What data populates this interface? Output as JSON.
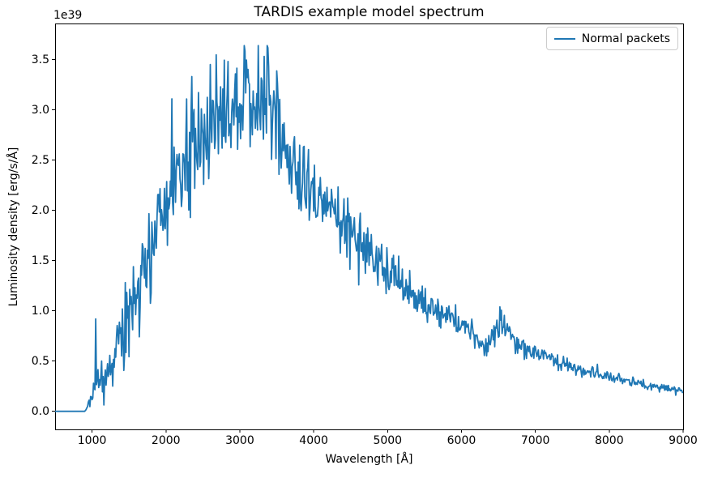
{
  "figure": {
    "title": "TARDIS example model spectrum",
    "background": "#ffffff",
    "text_color": "#000000"
  },
  "axes": {
    "xlabel": "Wavelength [Å]",
    "ylabel": "Luminosity density [erg/s/Å]",
    "offset_label": "1e39",
    "spine_color": "#000000",
    "x_tick_values": [
      1000,
      2000,
      3000,
      4000,
      5000,
      6000,
      7000,
      8000,
      9000
    ],
    "x_tick_labels": [
      "1000",
      "2000",
      "3000",
      "4000",
      "5000",
      "6000",
      "7000",
      "8000",
      "9000"
    ],
    "y_tick_values": [
      0.0,
      0.5,
      1.0,
      1.5,
      2.0,
      2.5,
      3.0,
      3.5
    ],
    "y_tick_labels": [
      "0.0",
      "0.5",
      "1.0",
      "1.5",
      "2.0",
      "2.5",
      "3.0",
      "3.5"
    ]
  },
  "legend": {
    "location": "upper right",
    "entries": [
      {
        "label": "Normal packets",
        "color": "#1f77b4"
      }
    ]
  },
  "chart_data": {
    "type": "line",
    "title": "TARDIS example model spectrum",
    "xlabel": "Wavelength [Å]",
    "ylabel": "Luminosity density [erg/s/Å]",
    "y_unit_multiplier": "1e39 erg/s/Å",
    "xlim": [
      500,
      9000
    ],
    "ylim": [
      -0.18,
      3.86
    ],
    "grid": false,
    "legend_position": "upper right",
    "series": [
      {
        "name": "Normal packets",
        "color": "#1f77b4",
        "description": "Noisy Monte-Carlo supernova spectrum: zero below ~900 Å, steep noisy rise 1000-2500 Å, broad peak ~3.1e39 at 2800-3400 Å (max spike 3.64e39 near 3060 Å), noisy decline past 3600 Å, absorption dip near 6300 Å with emission bump ~0.9e39 near 6550 Å, smooth tail to ~0.21e39 at 9000 Å",
        "envelope": [
          [
            500,
            0
          ],
          [
            900,
            0
          ],
          [
            940,
            0.04
          ],
          [
            1000,
            0.17
          ],
          [
            1100,
            0.3
          ],
          [
            1200,
            0.38
          ],
          [
            1300,
            0.52
          ],
          [
            1400,
            0.72
          ],
          [
            1500,
            1.0
          ],
          [
            1600,
            1.22
          ],
          [
            1700,
            1.45
          ],
          [
            1800,
            1.65
          ],
          [
            1900,
            1.85
          ],
          [
            2000,
            2.0
          ],
          [
            2100,
            2.2
          ],
          [
            2200,
            2.4
          ],
          [
            2300,
            2.55
          ],
          [
            2400,
            2.68
          ],
          [
            2500,
            2.7
          ],
          [
            2600,
            2.8
          ],
          [
            2700,
            2.95
          ],
          [
            2800,
            3.02
          ],
          [
            2900,
            3.07
          ],
          [
            3000,
            3.12
          ],
          [
            3100,
            3.15
          ],
          [
            3200,
            3.13
          ],
          [
            3300,
            3.12
          ],
          [
            3400,
            3.05
          ],
          [
            3500,
            2.92
          ],
          [
            3560,
            2.65
          ],
          [
            3650,
            2.42
          ],
          [
            3750,
            2.38
          ],
          [
            3850,
            2.3
          ],
          [
            4000,
            2.13
          ],
          [
            4150,
            2.05
          ],
          [
            4300,
            1.93
          ],
          [
            4450,
            1.85
          ],
          [
            4600,
            1.7
          ],
          [
            4800,
            1.55
          ],
          [
            5000,
            1.42
          ],
          [
            5200,
            1.27
          ],
          [
            5400,
            1.13
          ],
          [
            5600,
            1.02
          ],
          [
            5800,
            0.95
          ],
          [
            6000,
            0.88
          ],
          [
            6150,
            0.78
          ],
          [
            6250,
            0.68
          ],
          [
            6350,
            0.63
          ],
          [
            6450,
            0.82
          ],
          [
            6550,
            0.88
          ],
          [
            6650,
            0.78
          ],
          [
            6800,
            0.66
          ],
          [
            7000,
            0.58
          ],
          [
            7200,
            0.52
          ],
          [
            7400,
            0.46
          ],
          [
            7600,
            0.41
          ],
          [
            7800,
            0.38
          ],
          [
            8000,
            0.34
          ],
          [
            8200,
            0.31
          ],
          [
            8400,
            0.28
          ],
          [
            8600,
            0.25
          ],
          [
            8800,
            0.23
          ],
          [
            9000,
            0.21
          ]
        ],
        "spikes": [
          [
            1050,
            0.92
          ],
          [
            2080,
            3.11
          ],
          [
            3060,
            3.64
          ]
        ],
        "noise": {
          "seed": 20,
          "bin_width": 10,
          "rel_sigma_base": 0.08,
          "rel_sigma_blue": 0.33,
          "blue_decay": 600,
          "clamp_max": 3.64
        }
      }
    ]
  }
}
